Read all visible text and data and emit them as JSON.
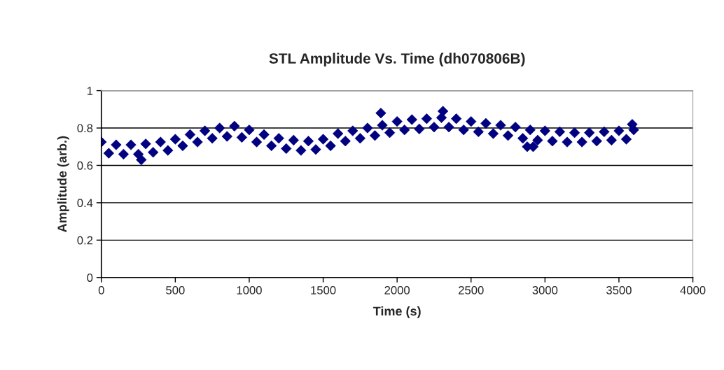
{
  "chart_data": {
    "type": "scatter",
    "title": "STL Amplitude Vs. Time (dh070806B)",
    "xlabel": "Time (s)",
    "ylabel": "Amplitude (arb.)",
    "xlim": [
      0,
      4000
    ],
    "xticks": [
      0,
      500,
      1000,
      1500,
      2000,
      2500,
      3000,
      3500,
      4000
    ],
    "ylim": [
      0,
      1
    ],
    "yticks": [
      0,
      0.2,
      0.4,
      0.6,
      0.8,
      1
    ],
    "grid": "y",
    "marker": "diamond",
    "legend": false,
    "series": [
      {
        "color": "#000080",
        "x": [
          0,
          50,
          100,
          150,
          200,
          250,
          300,
          350,
          400,
          450,
          500,
          550,
          600,
          650,
          700,
          750,
          800,
          850,
          900,
          950,
          1000,
          1050,
          1100,
          1150,
          1200,
          1250,
          1300,
          1350,
          1400,
          1450,
          1500,
          1550,
          1600,
          1650,
          1700,
          1750,
          1800,
          1850,
          1900,
          1950,
          2000,
          2050,
          2100,
          2150,
          2200,
          2250,
          2300,
          2350,
          2400,
          2450,
          2500,
          2550,
          2600,
          2650,
          2700,
          2750,
          2800,
          2850,
          2900,
          2950,
          3000,
          3050,
          3100,
          3150,
          3200,
          3250,
          3300,
          3350,
          3400,
          3450,
          3500,
          3550,
          3600,
          1890,
          2310,
          270,
          2880,
          2920,
          3590
        ],
        "values": [
          0.725,
          0.665,
          0.71,
          0.66,
          0.71,
          0.66,
          0.715,
          0.67,
          0.725,
          0.68,
          0.74,
          0.705,
          0.765,
          0.725,
          0.785,
          0.745,
          0.8,
          0.755,
          0.81,
          0.75,
          0.79,
          0.725,
          0.765,
          0.705,
          0.745,
          0.69,
          0.735,
          0.68,
          0.73,
          0.685,
          0.74,
          0.705,
          0.77,
          0.73,
          0.785,
          0.745,
          0.8,
          0.76,
          0.815,
          0.775,
          0.835,
          0.79,
          0.845,
          0.795,
          0.85,
          0.805,
          0.855,
          0.805,
          0.85,
          0.79,
          0.835,
          0.78,
          0.825,
          0.77,
          0.815,
          0.76,
          0.805,
          0.745,
          0.79,
          0.735,
          0.785,
          0.73,
          0.78,
          0.725,
          0.775,
          0.725,
          0.775,
          0.73,
          0.78,
          0.735,
          0.785,
          0.74,
          0.79,
          0.88,
          0.89,
          0.63,
          0.7,
          0.7,
          0.82
        ]
      }
    ]
  }
}
